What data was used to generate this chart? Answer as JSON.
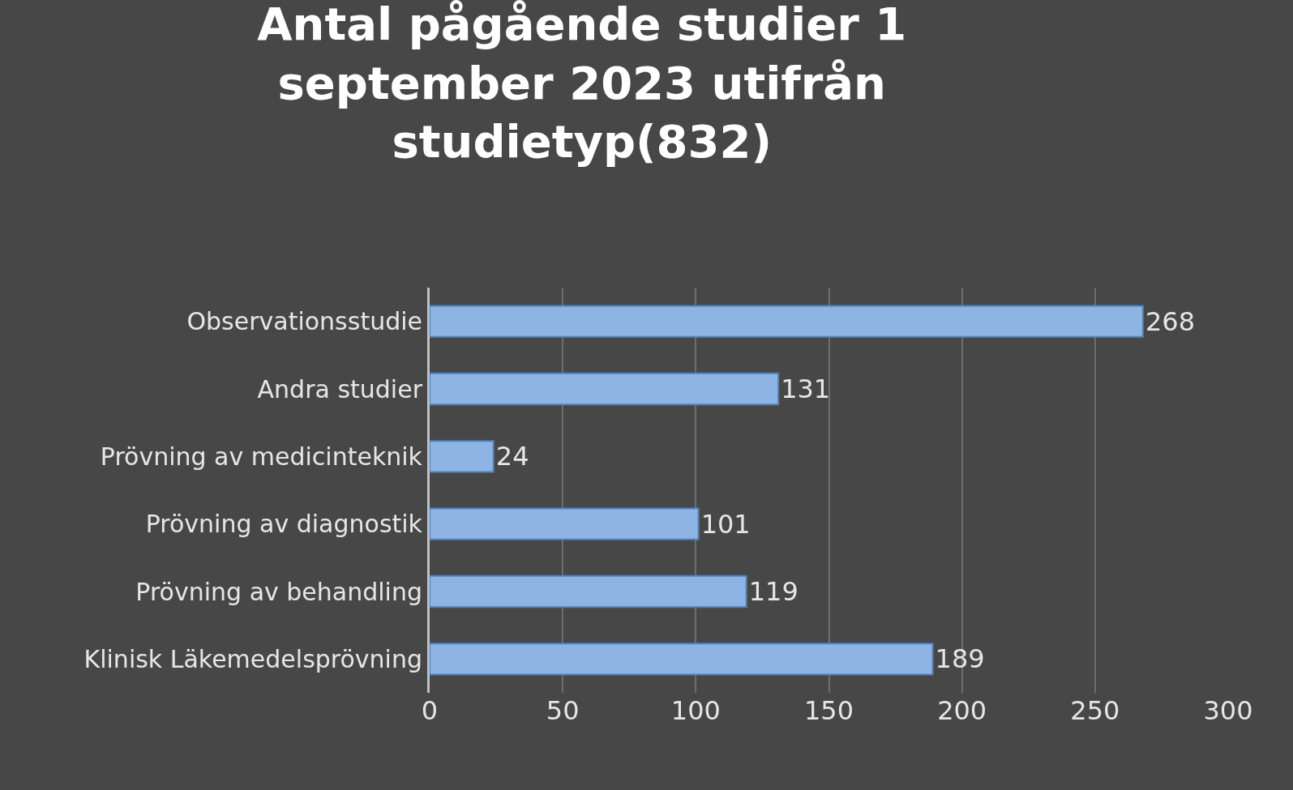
{
  "chart_data": {
    "type": "bar",
    "orientation": "horizontal",
    "title": "Antal pågående studier 1 september 2023 utifrån studietyp(832)",
    "categories": [
      "Observationsstudie",
      "Andra studier",
      "Prövning av medicinteknik",
      "Prövning av diagnostik",
      "Prövning av behandling",
      "Klinisk Läkemedelsprövning"
    ],
    "values": [
      268,
      131,
      24,
      101,
      119,
      189
    ],
    "color": "#8db4e2",
    "xlim": [
      0,
      300
    ],
    "xticks": [
      0,
      50,
      100,
      150,
      200,
      250,
      300
    ],
    "grid": "x",
    "data_labels": true,
    "legend": false
  }
}
